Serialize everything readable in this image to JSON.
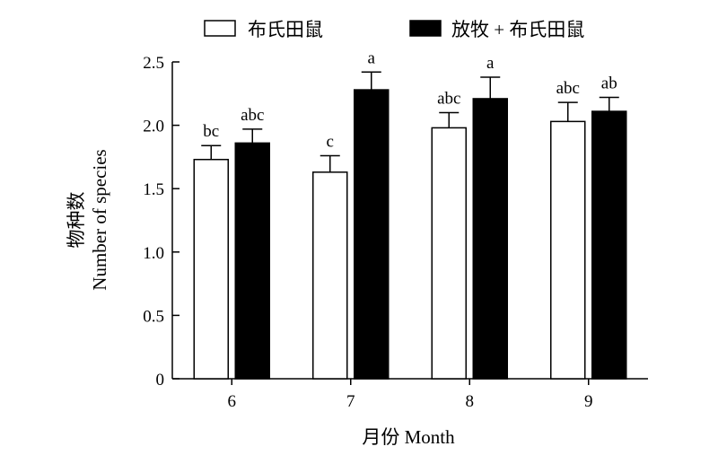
{
  "chart_data": {
    "type": "bar",
    "categories": [
      "6",
      "7",
      "8",
      "9"
    ],
    "series": [
      {
        "name": "布氏田鼠",
        "values": [
          1.73,
          1.63,
          1.98,
          2.03
        ],
        "errors": [
          0.11,
          0.13,
          0.12,
          0.15
        ],
        "labels": [
          "bc",
          "c",
          "abc",
          "abc"
        ],
        "color": "#ffffff"
      },
      {
        "name": "放牧 + 布氏田鼠",
        "values": [
          1.86,
          2.28,
          2.21,
          2.11
        ],
        "errors": [
          0.11,
          0.14,
          0.17,
          0.11
        ],
        "labels": [
          "abc",
          "a",
          "a",
          "ab"
        ],
        "color": "#000000"
      }
    ],
    "xlabel": "月份 Month",
    "ylabel": [
      "物种数",
      "Number of species"
    ],
    "ylim": [
      0,
      2.5
    ],
    "yticks": [
      0,
      0.5,
      1.0,
      1.5,
      2.0,
      2.5
    ],
    "ytick_labels": [
      "0",
      "0.5",
      "1.0",
      "1.5",
      "2.0",
      "2.5"
    ],
    "grid": false,
    "legend_position": "top"
  }
}
